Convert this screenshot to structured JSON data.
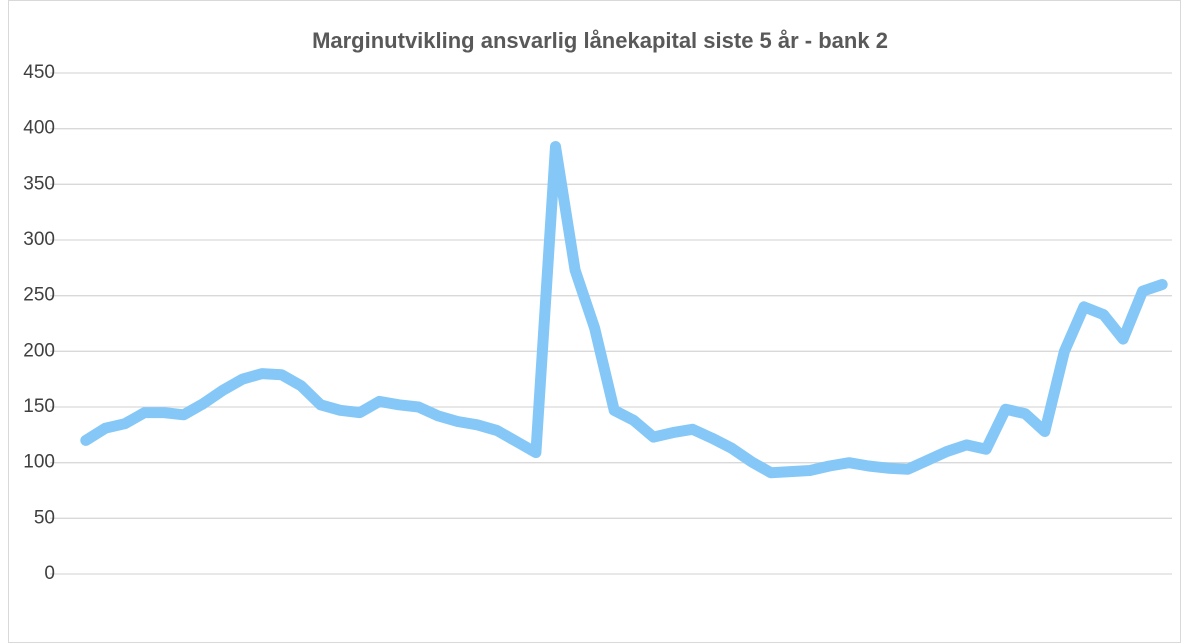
{
  "chart_data": {
    "type": "line",
    "title": "Marginutvikling ansvarlig lånekapital siste 5 år - bank 2",
    "categories": [
      null,
      null,
      null,
      null,
      null,
      null,
      null,
      null,
      null,
      null,
      null,
      null,
      null,
      null,
      null,
      null,
      null,
      null,
      null,
      null,
      null,
      null,
      null,
      null,
      null,
      null,
      null,
      null,
      null,
      null,
      null,
      null,
      null,
      null,
      null,
      null,
      null,
      null,
      null,
      null,
      null,
      null,
      null,
      null,
      null,
      null,
      null,
      null,
      null,
      null,
      null,
      null,
      null,
      null,
      null,
      null
    ],
    "series": [
      {
        "name": null,
        "color": "#85c8f7",
        "values": [
          120,
          131,
          135,
          145,
          145,
          143,
          153,
          165,
          175,
          180,
          179,
          169,
          152,
          147,
          145,
          155,
          152,
          150,
          142,
          137,
          134,
          129,
          119,
          109,
          384,
          273,
          221,
          147,
          138,
          123,
          127,
          130,
          122,
          113,
          101,
          91,
          92,
          93,
          97,
          100,
          97,
          95,
          94,
          102,
          110,
          116,
          112,
          148,
          144,
          128,
          200,
          240,
          233,
          211,
          254,
          260
        ]
      }
    ],
    "ylim": [
      0,
      450
    ],
    "yticks": [
      0,
      50,
      100,
      150,
      200,
      250,
      300,
      350,
      400,
      450
    ],
    "grid": true
  }
}
